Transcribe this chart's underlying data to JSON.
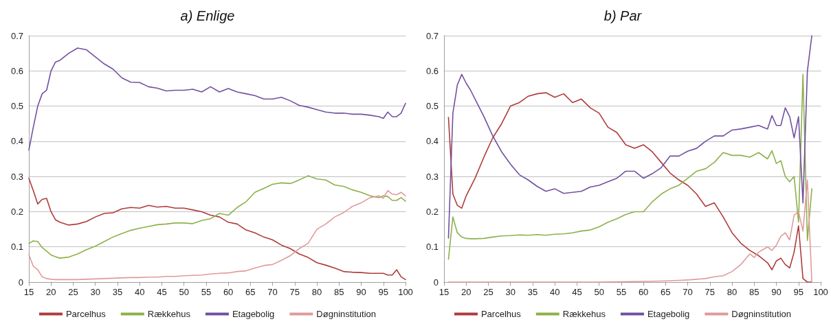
{
  "chart_data": [
    {
      "type": "line",
      "title": "a) Enlige",
      "x": [
        15,
        16,
        17,
        18,
        19,
        20,
        21,
        22,
        24,
        26,
        28,
        30,
        32,
        34,
        36,
        38,
        40,
        42,
        44,
        46,
        48,
        50,
        52,
        54,
        56,
        58,
        60,
        62,
        64,
        66,
        68,
        70,
        72,
        74,
        76,
        78,
        80,
        82,
        84,
        86,
        88,
        90,
        92,
        94,
        95,
        96,
        97,
        98,
        99,
        100
      ],
      "series": [
        {
          "name": "Parcelhus",
          "color": "#b03a3a",
          "values": [
            0.295,
            0.26,
            0.222,
            0.235,
            0.238,
            0.2,
            0.177,
            0.17,
            0.162,
            0.165,
            0.172,
            0.185,
            0.195,
            0.197,
            0.208,
            0.212,
            0.21,
            0.218,
            0.213,
            0.215,
            0.21,
            0.21,
            0.205,
            0.2,
            0.19,
            0.185,
            0.17,
            0.165,
            0.148,
            0.14,
            0.128,
            0.12,
            0.105,
            0.095,
            0.08,
            0.07,
            0.055,
            0.048,
            0.04,
            0.03,
            0.028,
            0.027,
            0.025,
            0.025,
            0.025,
            0.02,
            0.02,
            0.035,
            0.015,
            0.007
          ]
        },
        {
          "name": "Rækkehus",
          "color": "#8db04a",
          "values": [
            0.11,
            0.117,
            0.115,
            0.098,
            0.088,
            0.077,
            0.072,
            0.068,
            0.071,
            0.08,
            0.092,
            0.102,
            0.115,
            0.128,
            0.138,
            0.147,
            0.153,
            0.158,
            0.163,
            0.165,
            0.168,
            0.168,
            0.166,
            0.175,
            0.18,
            0.195,
            0.19,
            0.212,
            0.228,
            0.255,
            0.266,
            0.278,
            0.282,
            0.28,
            0.29,
            0.302,
            0.293,
            0.29,
            0.276,
            0.272,
            0.262,
            0.255,
            0.245,
            0.24,
            0.245,
            0.243,
            0.232,
            0.232,
            0.24,
            0.23
          ]
        },
        {
          "name": "Etagebolig",
          "color": "#7050a0",
          "values": [
            0.375,
            0.44,
            0.5,
            0.535,
            0.545,
            0.6,
            0.625,
            0.63,
            0.65,
            0.665,
            0.66,
            0.64,
            0.62,
            0.605,
            0.58,
            0.568,
            0.567,
            0.555,
            0.551,
            0.543,
            0.545,
            0.545,
            0.548,
            0.54,
            0.555,
            0.54,
            0.55,
            0.54,
            0.535,
            0.53,
            0.52,
            0.52,
            0.525,
            0.515,
            0.502,
            0.497,
            0.49,
            0.483,
            0.48,
            0.48,
            0.477,
            0.477,
            0.474,
            0.47,
            0.465,
            0.483,
            0.47,
            0.47,
            0.48,
            0.508
          ]
        },
        {
          "name": "Døgninstitution",
          "color": "#e09a9a",
          "values": [
            0.078,
            0.045,
            0.035,
            0.015,
            0.01,
            0.008,
            0.007,
            0.007,
            0.007,
            0.007,
            0.008,
            0.009,
            0.01,
            0.011,
            0.012,
            0.013,
            0.013,
            0.014,
            0.014,
            0.016,
            0.016,
            0.018,
            0.019,
            0.02,
            0.023,
            0.025,
            0.026,
            0.03,
            0.032,
            0.04,
            0.047,
            0.05,
            0.062,
            0.075,
            0.095,
            0.11,
            0.15,
            0.165,
            0.185,
            0.197,
            0.215,
            0.225,
            0.24,
            0.245,
            0.238,
            0.26,
            0.25,
            0.248,
            0.255,
            0.245
          ]
        }
      ],
      "xlim": [
        15,
        100
      ],
      "xticks": [
        15,
        20,
        25,
        30,
        35,
        40,
        45,
        50,
        55,
        60,
        65,
        70,
        75,
        80,
        85,
        90,
        95,
        100
      ],
      "ylim": [
        0,
        0.7
      ],
      "yticks": [
        0,
        0.1,
        0.2,
        0.3,
        0.4,
        0.5,
        0.6,
        0.7
      ],
      "grid": "y",
      "legend": "bottom",
      "marker": "none",
      "line_style": "solid"
    },
    {
      "type": "line",
      "title": "b) Par",
      "series": [
        {
          "name": "Parcelhus",
          "color": "#b03a3a",
          "x": [
            16,
            17,
            18,
            19,
            20,
            21,
            22,
            24,
            26,
            28,
            30,
            32,
            34,
            36,
            38,
            40,
            42,
            44,
            46,
            48,
            50,
            52,
            54,
            56,
            58,
            60,
            62,
            64,
            66,
            68,
            70,
            72,
            74,
            76,
            78,
            80,
            82,
            84,
            86,
            88,
            89,
            90,
            91,
            92,
            93,
            94,
            95,
            96,
            97,
            98
          ],
          "values": [
            0.468,
            0.25,
            0.218,
            0.21,
            0.245,
            0.27,
            0.295,
            0.355,
            0.41,
            0.45,
            0.5,
            0.51,
            0.528,
            0.535,
            0.538,
            0.525,
            0.535,
            0.51,
            0.52,
            0.495,
            0.48,
            0.44,
            0.425,
            0.39,
            0.38,
            0.39,
            0.37,
            0.34,
            0.31,
            0.29,
            0.275,
            0.25,
            0.215,
            0.225,
            0.185,
            0.14,
            0.11,
            0.09,
            0.075,
            0.055,
            0.035,
            0.06,
            0.068,
            0.05,
            0.04,
            0.085,
            0.16,
            0.01,
            0,
            0
          ]
        },
        {
          "name": "Rækkehus",
          "color": "#8db04a",
          "x": [
            16,
            17,
            18,
            19,
            20,
            21,
            22,
            24,
            26,
            28,
            30,
            32,
            34,
            36,
            38,
            40,
            42,
            44,
            46,
            48,
            50,
            52,
            54,
            56,
            58,
            60,
            62,
            64,
            66,
            68,
            70,
            72,
            74,
            76,
            78,
            80,
            82,
            84,
            86,
            88,
            89,
            90,
            91,
            92,
            93,
            94,
            95,
            96,
            97,
            98
          ],
          "values": [
            0.065,
            0.185,
            0.14,
            0.128,
            0.124,
            0.123,
            0.123,
            0.124,
            0.128,
            0.131,
            0.132,
            0.134,
            0.133,
            0.135,
            0.133,
            0.136,
            0.137,
            0.14,
            0.145,
            0.148,
            0.157,
            0.17,
            0.18,
            0.192,
            0.2,
            0.2,
            0.228,
            0.25,
            0.265,
            0.275,
            0.295,
            0.315,
            0.322,
            0.34,
            0.368,
            0.36,
            0.36,
            0.355,
            0.368,
            0.35,
            0.373,
            0.337,
            0.345,
            0.3,
            0.285,
            0.3,
            0.17,
            0.59,
            0.118,
            0.265
          ]
        },
        {
          "name": "Etagebolig",
          "color": "#7050a0",
          "x": [
            16,
            17,
            18,
            19,
            20,
            21,
            22,
            24,
            26,
            28,
            30,
            32,
            34,
            36,
            38,
            40,
            42,
            44,
            46,
            48,
            50,
            52,
            54,
            56,
            58,
            60,
            62,
            64,
            66,
            68,
            70,
            72,
            74,
            76,
            78,
            80,
            82,
            84,
            86,
            88,
            89,
            90,
            91,
            92,
            93,
            94,
            95,
            96,
            97,
            98
          ],
          "values": [
            0.125,
            0.48,
            0.56,
            0.59,
            0.565,
            0.545,
            0.52,
            0.47,
            0.415,
            0.37,
            0.335,
            0.305,
            0.29,
            0.272,
            0.258,
            0.265,
            0.252,
            0.255,
            0.258,
            0.27,
            0.275,
            0.285,
            0.295,
            0.315,
            0.315,
            0.295,
            0.308,
            0.325,
            0.358,
            0.358,
            0.372,
            0.38,
            0.4,
            0.415,
            0.415,
            0.432,
            0.435,
            0.44,
            0.445,
            0.435,
            0.473,
            0.445,
            0.445,
            0.495,
            0.47,
            0.41,
            0.47,
            0.225,
            0.6,
            0.7
          ]
        },
        {
          "name": "Døgninstitution",
          "color": "#e09a9a",
          "x": [
            16,
            30,
            50,
            60,
            64,
            68,
            70,
            72,
            74,
            76,
            78,
            80,
            82,
            84,
            85,
            86,
            88,
            89,
            90,
            91,
            92,
            93,
            94,
            95,
            96,
            97,
            98
          ],
          "values": [
            0,
            0,
            0,
            0.002,
            0.003,
            0.005,
            0.006,
            0.008,
            0.01,
            0.015,
            0.018,
            0.03,
            0.05,
            0.08,
            0.07,
            0.085,
            0.1,
            0.09,
            0.105,
            0.13,
            0.14,
            0.12,
            0.19,
            0.2,
            0.145,
            0.29,
            0
          ]
        }
      ],
      "xlim": [
        15,
        100
      ],
      "xticks": [
        15,
        20,
        25,
        30,
        35,
        40,
        45,
        50,
        55,
        60,
        65,
        70,
        75,
        80,
        85,
        90,
        95,
        100
      ],
      "ylim": [
        0,
        0.7
      ],
      "yticks": [
        0,
        0.1,
        0.2,
        0.3,
        0.4,
        0.5,
        0.6,
        0.7
      ],
      "grid": "y",
      "legend": "bottom",
      "marker": "none",
      "line_style": "solid"
    }
  ]
}
